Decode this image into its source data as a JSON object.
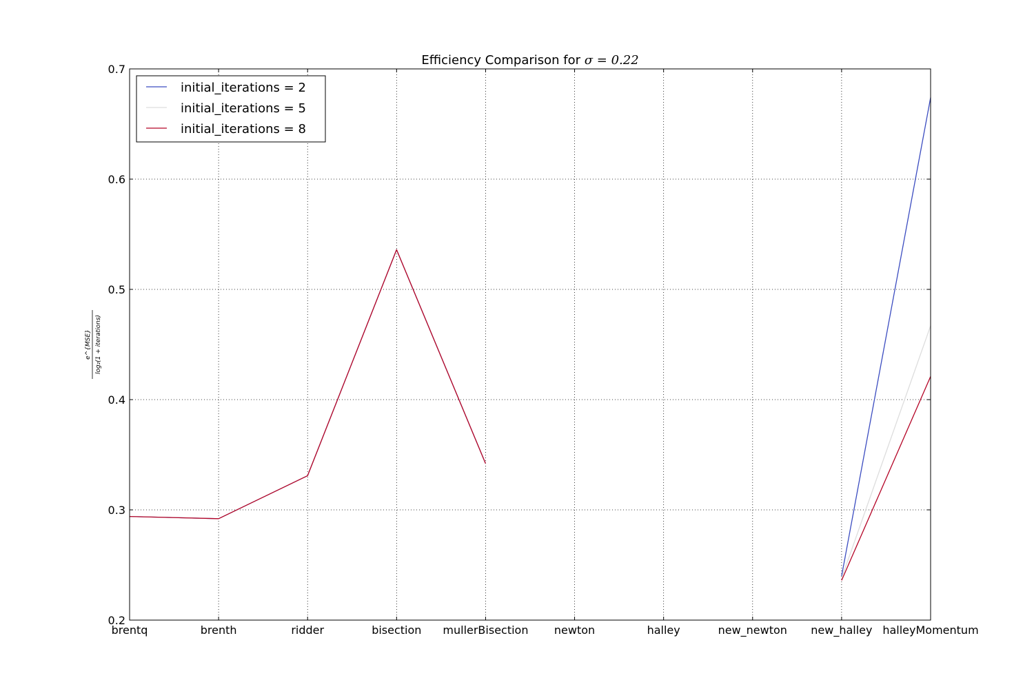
{
  "chart_data": {
    "type": "line",
    "title_prefix": "Efficiency Comparison for ",
    "title_math": "σ = 0.22",
    "ylabel_numerator": "e^{MSE}",
    "ylabel_denominator": "log₂(1 + iterations)",
    "categories": [
      "brentq",
      "brenth",
      "ridder",
      "bisection",
      "mullerBisection",
      "newton",
      "halley",
      "new_newton",
      "new_halley",
      "halleyMomentum"
    ],
    "ylim": [
      0.2,
      0.7
    ],
    "yticks": [
      "0.2",
      "0.3",
      "0.4",
      "0.5",
      "0.6",
      "0.7"
    ],
    "grid": true,
    "legend_position": "top-left",
    "series": [
      {
        "name": "initial_iterations = 2",
        "color": "#3b4cc0",
        "values": [
          0.294,
          0.292,
          0.331,
          0.536,
          0.342,
          null,
          null,
          null,
          0.24,
          0.674
        ]
      },
      {
        "name": "initial_iterations = 5",
        "color": "#dddddd",
        "values": [
          0.294,
          0.292,
          0.331,
          0.536,
          0.342,
          null,
          null,
          null,
          0.238,
          0.467
        ]
      },
      {
        "name": "initial_iterations = 8",
        "color": "#b40426",
        "values": [
          0.294,
          0.292,
          0.331,
          0.536,
          0.342,
          null,
          null,
          null,
          0.236,
          0.421
        ]
      }
    ]
  }
}
